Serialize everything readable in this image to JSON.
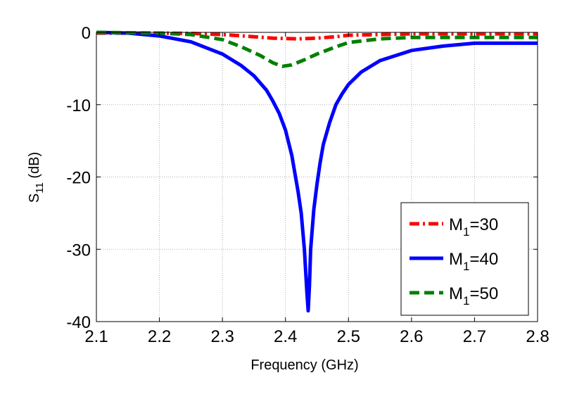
{
  "chart_data": {
    "type": "line",
    "title": "",
    "xlabel": "Frequency (GHz)",
    "ylabel_main": "S",
    "ylabel_sub": "11",
    "ylabel_unit": " (dB)",
    "xlim": [
      2.1,
      2.8
    ],
    "ylim": [
      -40,
      0
    ],
    "grid": true,
    "legend_position": "bottom-right",
    "x_ticks": [
      {
        "value": 2.1,
        "label": "2.1"
      },
      {
        "value": 2.2,
        "label": "2.2"
      },
      {
        "value": 2.3,
        "label": "2.3"
      },
      {
        "value": 2.4,
        "label": "2.4"
      },
      {
        "value": 2.5,
        "label": "2.5"
      },
      {
        "value": 2.6,
        "label": "2.6"
      },
      {
        "value": 2.7,
        "label": "2.7"
      },
      {
        "value": 2.8,
        "label": "2.8"
      }
    ],
    "y_ticks": [
      {
        "value": 0,
        "label": "0"
      },
      {
        "value": -10,
        "label": "-10"
      },
      {
        "value": -20,
        "label": "-20"
      },
      {
        "value": -30,
        "label": "-30"
      },
      {
        "value": -40,
        "label": "-40"
      }
    ],
    "series": [
      {
        "name": "M1=30",
        "legend_main": "M",
        "legend_sub": "1",
        "legend_rest": "=30",
        "color": "#ff0000",
        "style": "dashdot",
        "x": [
          2.1,
          2.2,
          2.25,
          2.3,
          2.35,
          2.38,
          2.42,
          2.45,
          2.48,
          2.5,
          2.55,
          2.6,
          2.7,
          2.8
        ],
        "y": [
          -0.1,
          -0.1,
          -0.15,
          -0.3,
          -0.6,
          -0.8,
          -0.9,
          -0.8,
          -0.6,
          -0.4,
          -0.3,
          -0.2,
          -0.2,
          -0.2
        ]
      },
      {
        "name": "M1=40",
        "legend_main": "M",
        "legend_sub": "1",
        "legend_rest": "=40",
        "color": "#0000ff",
        "style": "solid",
        "x": [
          2.1,
          2.15,
          2.2,
          2.25,
          2.3,
          2.33,
          2.35,
          2.37,
          2.38,
          2.39,
          2.4,
          2.41,
          2.42,
          2.425,
          2.43,
          2.434,
          2.436,
          2.438,
          2.44,
          2.445,
          2.45,
          2.455,
          2.46,
          2.47,
          2.48,
          2.49,
          2.5,
          2.52,
          2.55,
          2.6,
          2.65,
          2.7,
          2.8
        ],
        "y": [
          0,
          -0.1,
          -0.5,
          -1.3,
          -3.0,
          -4.6,
          -6.0,
          -8.0,
          -9.5,
          -11.2,
          -13.5,
          -17.0,
          -22.0,
          -25.0,
          -30.0,
          -36.0,
          -38.5,
          -35.0,
          -30.0,
          -24.5,
          -21.0,
          -18.0,
          -15.5,
          -12.5,
          -10.0,
          -8.5,
          -7.2,
          -5.5,
          -3.9,
          -2.5,
          -1.9,
          -1.5,
          -1.5
        ]
      },
      {
        "name": "M1=50",
        "legend_main": "M",
        "legend_sub": "1",
        "legend_rest": "=50",
        "color": "#008000",
        "style": "dashed",
        "x": [
          2.1,
          2.2,
          2.25,
          2.3,
          2.33,
          2.36,
          2.38,
          2.395,
          2.41,
          2.43,
          2.45,
          2.48,
          2.5,
          2.55,
          2.6,
          2.7,
          2.8
        ],
        "y": [
          0,
          -0.1,
          -0.3,
          -1.0,
          -2.0,
          -3.2,
          -4.2,
          -4.7,
          -4.5,
          -3.8,
          -3.0,
          -2.0,
          -1.4,
          -0.9,
          -0.7,
          -0.7,
          -0.7
        ]
      }
    ]
  }
}
